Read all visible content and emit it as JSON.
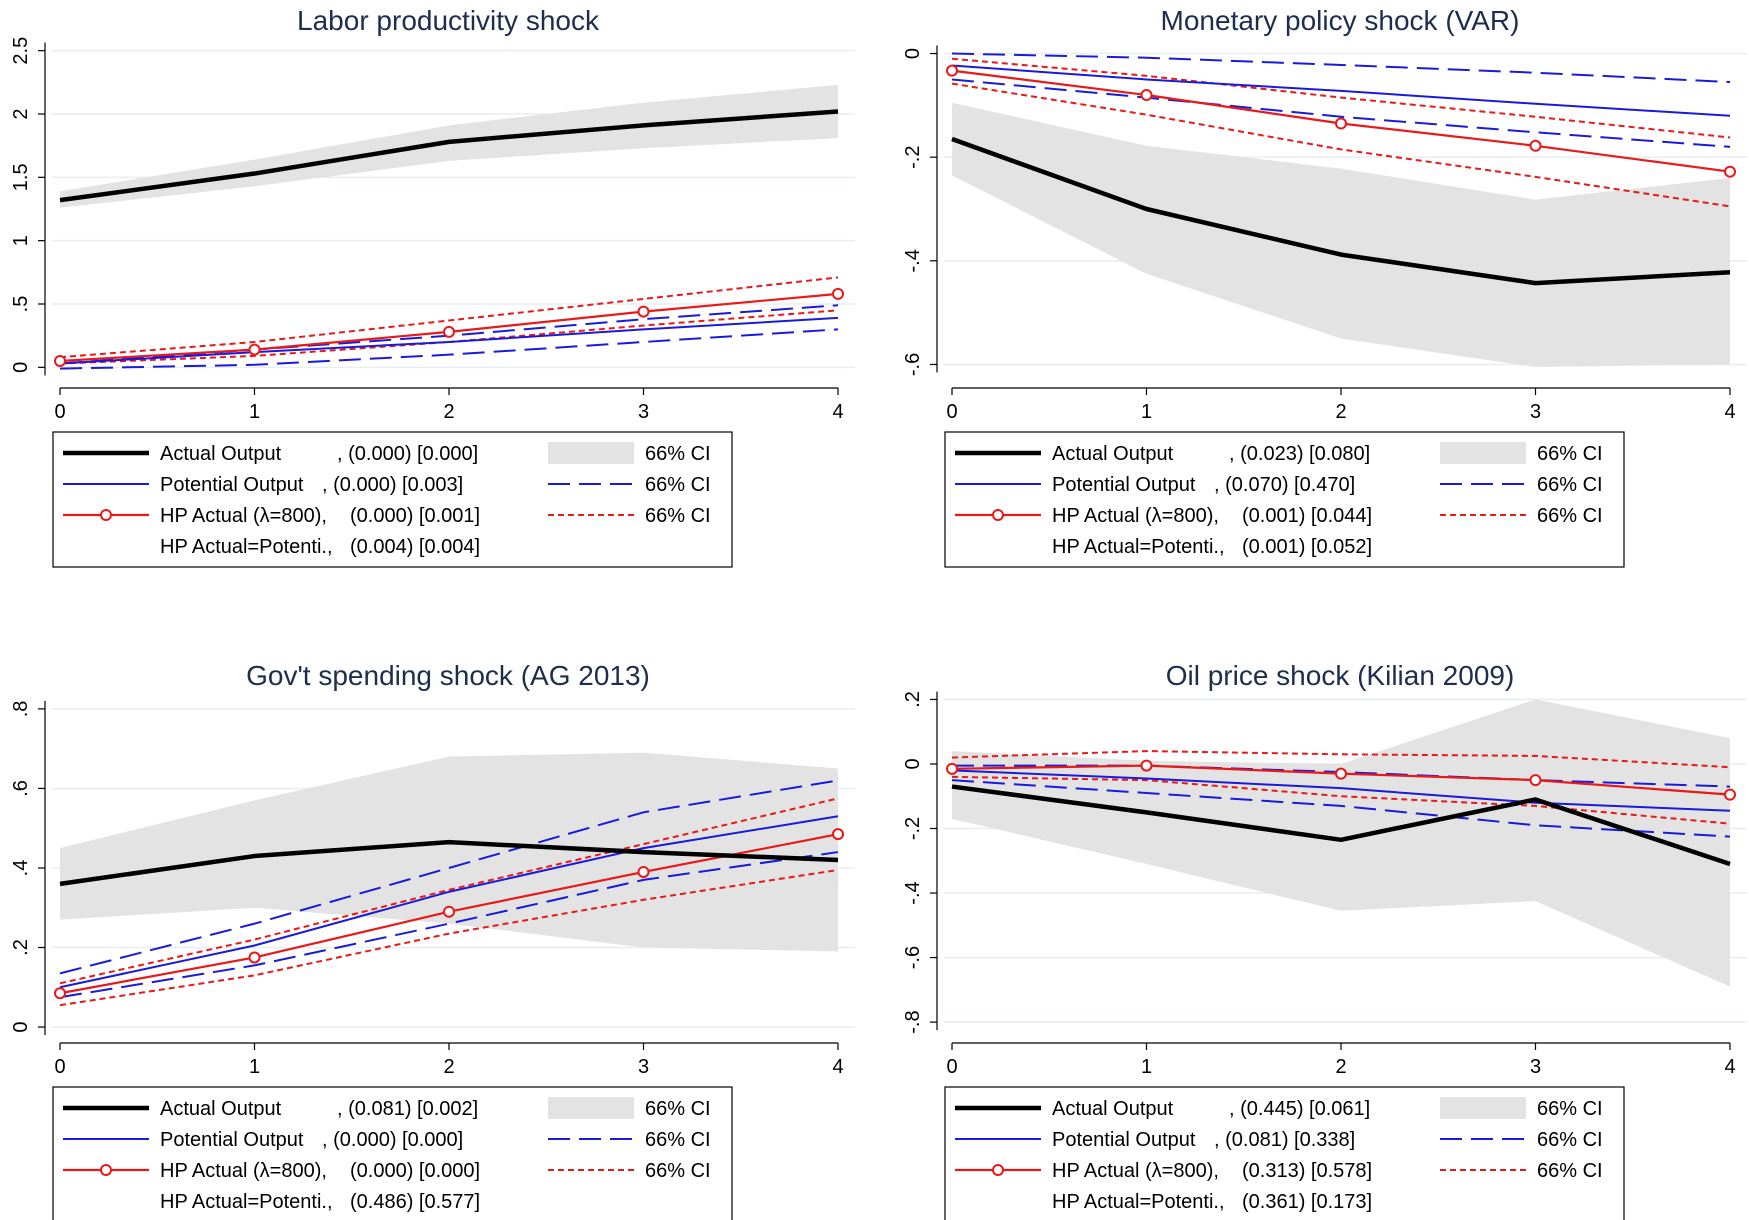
{
  "legend_common": {
    "actual_label": "Actual Output",
    "potential_label": "Potential Output",
    "hp_label": "HP Actual (λ=800),",
    "hp_eq_label": "HP Actual=Potenti.,",
    "ci_label": "66% CI"
  },
  "colors": {
    "actual": "#000000",
    "potential": "#1a1adb",
    "hp": "#e81919",
    "ci_band": "#e3e3e3",
    "title": "#1f2d4d",
    "grid": "#e6eef2"
  },
  "chart_data": [
    {
      "type": "line",
      "title": "Labor productivity shock",
      "x": [
        0,
        1,
        2,
        3,
        4
      ],
      "ylim": [
        -0.1,
        2.6
      ],
      "yticks": [
        0,
        0.5,
        1,
        1.5,
        2,
        2.5
      ],
      "ytick_labels": [
        "0",
        ".5",
        "1",
        "1.5",
        "2",
        "2.5"
      ],
      "xtick_labels": [
        "0",
        "1",
        "2",
        "3",
        "4"
      ],
      "grid": true,
      "series": [
        {
          "name": "Actual Output",
          "stats": ", (0.000) [0.000]",
          "values": [
            1.32,
            1.53,
            1.78,
            1.91,
            2.02
          ],
          "ci_low": [
            1.26,
            1.43,
            1.63,
            1.73,
            1.81
          ],
          "ci_high": [
            1.39,
            1.64,
            1.91,
            2.09,
            2.23
          ]
        },
        {
          "name": "Potential Output",
          "stats": ", (0.000) [0.003]",
          "values": [
            0.03,
            0.12,
            0.2,
            0.3,
            0.39
          ],
          "ci_low": [
            -0.01,
            0.02,
            0.1,
            0.2,
            0.3
          ],
          "ci_high": [
            0.03,
            0.14,
            0.25,
            0.38,
            0.49
          ]
        },
        {
          "name": "HP Actual (λ=800),",
          "stats": "(0.000) [0.001]",
          "values": [
            0.05,
            0.14,
            0.28,
            0.44,
            0.58
          ],
          "ci_low": [
            0.03,
            0.09,
            0.2,
            0.33,
            0.45
          ],
          "ci_high": [
            0.08,
            0.2,
            0.37,
            0.54,
            0.71
          ]
        },
        {
          "name": "HP Actual=Potenti.,",
          "stats": "(0.004) [0.004]"
        }
      ]
    },
    {
      "type": "line",
      "title": "Monetary policy shock (VAR)",
      "x": [
        0,
        1,
        2,
        3,
        4
      ],
      "ylim": [
        -0.63,
        0.03
      ],
      "yticks": [
        0,
        -0.2,
        -0.4,
        -0.6
      ],
      "ytick_labels": [
        "0",
        "-.2",
        "-.4",
        "-.6"
      ],
      "xtick_labels": [
        "0",
        "1",
        "2",
        "3",
        "4"
      ],
      "grid": true,
      "series": [
        {
          "name": "Actual Output",
          "stats": ", (0.023) [0.080]",
          "values": [
            -0.165,
            -0.3,
            -0.388,
            -0.443,
            -0.422
          ],
          "ci_low": [
            -0.235,
            -0.425,
            -0.55,
            -0.605,
            -0.6
          ],
          "ci_high": [
            -0.095,
            -0.178,
            -0.222,
            -0.282,
            -0.24
          ]
        },
        {
          "name": "Potential Output",
          "stats": ", (0.070) [0.470]",
          "values": [
            -0.023,
            -0.05,
            -0.072,
            -0.097,
            -0.12
          ],
          "ci_low": [
            -0.05,
            -0.085,
            -0.122,
            -0.152,
            -0.18
          ],
          "ci_high": [
            0,
            -0.008,
            -0.022,
            -0.037,
            -0.055
          ]
        },
        {
          "name": "HP Actual (λ=800),",
          "stats": "(0.001) [0.044]",
          "values": [
            -0.033,
            -0.08,
            -0.135,
            -0.178,
            -0.228
          ],
          "ci_low": [
            -0.058,
            -0.118,
            -0.185,
            -0.238,
            -0.295
          ],
          "ci_high": [
            -0.01,
            -0.043,
            -0.085,
            -0.122,
            -0.162
          ]
        },
        {
          "name": "HP Actual=Potenti.,",
          "stats": "(0.001) [0.052]"
        }
      ]
    },
    {
      "type": "line",
      "title": "Gov't spending shock (AG 2013)",
      "x": [
        0,
        1,
        2,
        3,
        4
      ],
      "ylim": [
        -0.02,
        0.84
      ],
      "yticks": [
        0,
        0.2,
        0.4,
        0.6,
        0.8
      ],
      "ytick_labels": [
        "0",
        ".2",
        ".4",
        ".6",
        ".8"
      ],
      "xtick_labels": [
        "0",
        "1",
        "2",
        "3",
        "4"
      ],
      "grid": true,
      "series": [
        {
          "name": "Actual Output",
          "stats": ", (0.081) [0.002]",
          "values": [
            0.36,
            0.43,
            0.465,
            0.44,
            0.42
          ],
          "ci_low": [
            0.27,
            0.3,
            0.26,
            0.2,
            0.19
          ],
          "ci_high": [
            0.45,
            0.57,
            0.68,
            0.69,
            0.65
          ]
        },
        {
          "name": "Potential Output",
          "stats": ", (0.000) [0.000]",
          "values": [
            0.1,
            0.205,
            0.34,
            0.45,
            0.53
          ],
          "ci_low": [
            0.075,
            0.155,
            0.26,
            0.37,
            0.44
          ],
          "ci_high": [
            0.135,
            0.26,
            0.4,
            0.54,
            0.62
          ]
        },
        {
          "name": "HP Actual (λ=800),",
          "stats": "(0.000) [0.000]",
          "values": [
            0.085,
            0.175,
            0.29,
            0.39,
            0.485
          ],
          "ci_low": [
            0.055,
            0.13,
            0.235,
            0.32,
            0.395
          ],
          "ci_high": [
            0.11,
            0.22,
            0.345,
            0.46,
            0.575
          ]
        },
        {
          "name": "HP Actual=Potenti.,",
          "stats": "(0.486) [0.577]"
        }
      ]
    },
    {
      "type": "line",
      "title": "Oil price shock (Kilian 2009)",
      "x": [
        0,
        1,
        2,
        3,
        4
      ],
      "ylim": [
        -0.84,
        0.22
      ],
      "yticks": [
        0.2,
        0,
        -0.2,
        -0.4,
        -0.6,
        -0.8
      ],
      "ytick_labels": [
        ".2",
        "0",
        "-.2",
        "-.4",
        "-.6",
        "-.8"
      ],
      "xtick_labels": [
        "0",
        "1",
        "2",
        "3",
        "4"
      ],
      "grid": true,
      "series": [
        {
          "name": "Actual Output",
          "stats": ", (0.445) [0.061]",
          "values": [
            -0.07,
            -0.15,
            -0.235,
            -0.11,
            -0.31
          ],
          "ci_low": [
            -0.17,
            -0.31,
            -0.455,
            -0.425,
            -0.69
          ],
          "ci_high": [
            0.04,
            0.01,
            0.0,
            0.2,
            0.08
          ]
        },
        {
          "name": "Potential Output",
          "stats": ", (0.081) [0.338]",
          "values": [
            -0.02,
            -0.045,
            -0.075,
            -0.12,
            -0.145
          ],
          "ci_low": [
            -0.05,
            -0.09,
            -0.13,
            -0.19,
            -0.225
          ],
          "ci_high": [
            -0.005,
            -0.005,
            -0.025,
            -0.05,
            -0.07
          ]
        },
        {
          "name": "HP Actual (λ=800),",
          "stats": "(0.313) [0.578]",
          "values": [
            -0.015,
            -0.005,
            -0.03,
            -0.05,
            -0.095
          ],
          "ci_low": [
            -0.04,
            -0.05,
            -0.1,
            -0.13,
            -0.185
          ],
          "ci_high": [
            0.02,
            0.04,
            0.03,
            0.025,
            -0.01
          ]
        },
        {
          "name": "HP Actual=Potenti.,",
          "stats": "(0.361) [0.173]"
        }
      ]
    }
  ]
}
